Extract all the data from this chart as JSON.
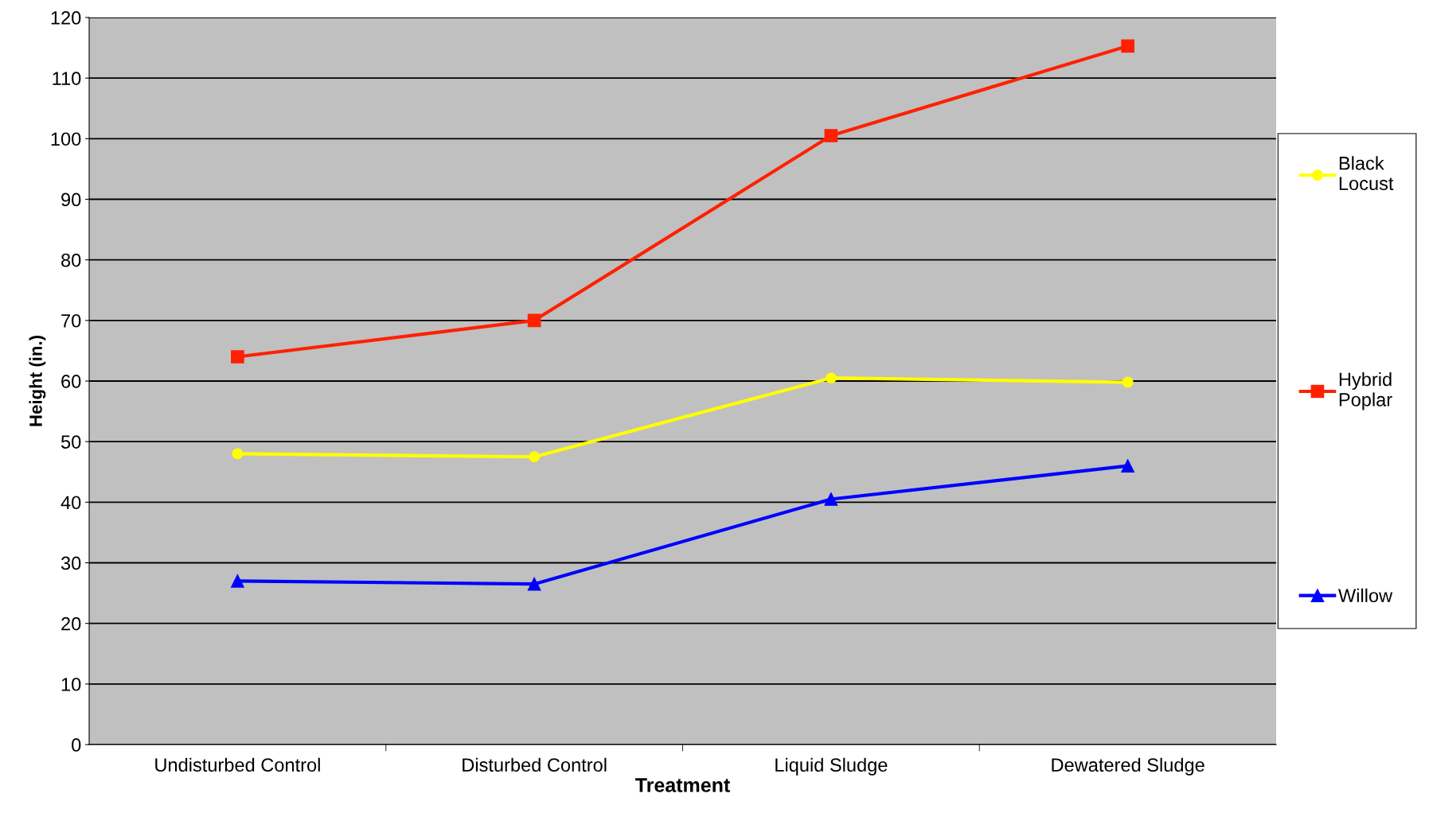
{
  "chart_data": {
    "type": "line",
    "xlabel": "Treatment",
    "ylabel": "Height (in.)",
    "categories": [
      "Undisturbed Control",
      "Disturbed Control",
      "Liquid Sludge",
      "Dewatered Sludge"
    ],
    "series": [
      {
        "name": "Black Locust",
        "color": "#ffff00",
        "marker": "circle",
        "values": [
          48,
          47.5,
          60.5,
          59.8
        ]
      },
      {
        "name": "Hybrid Poplar",
        "color": "#ff2000",
        "marker": "square",
        "values": [
          64,
          70,
          100.5,
          115.3
        ]
      },
      {
        "name": "Willow",
        "color": "#0000ff",
        "marker": "triangle",
        "values": [
          27,
          26.5,
          40.5,
          46
        ]
      }
    ],
    "ylim": [
      0,
      120
    ],
    "yticks": [
      0,
      10,
      20,
      30,
      40,
      50,
      60,
      70,
      80,
      90,
      100,
      110,
      120
    ],
    "grid": "y",
    "legend": "right"
  }
}
